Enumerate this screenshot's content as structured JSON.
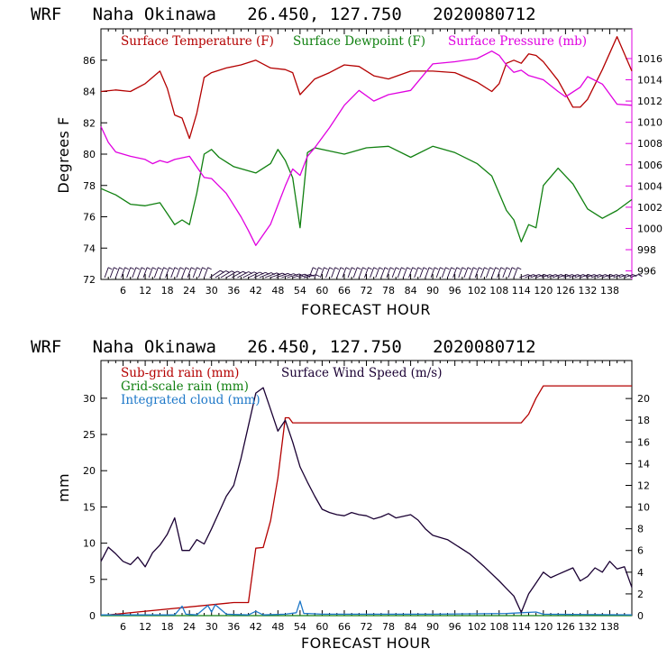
{
  "chart_data": [
    {
      "type": "line",
      "title": "WRF   Naha Okinawa   26.450, 127.750   2020080712",
      "xlabel": "FORECAST HOUR",
      "ylabel": "Degrees F",
      "xlim": [
        0,
        144
      ],
      "x_ticks": [
        6,
        12,
        18,
        24,
        30,
        36,
        42,
        48,
        54,
        60,
        66,
        72,
        78,
        84,
        90,
        96,
        102,
        108,
        114,
        120,
        126,
        132,
        138
      ],
      "ylim": [
        72,
        88
      ],
      "y_ticks": [
        72,
        74,
        76,
        78,
        80,
        82,
        84,
        86
      ],
      "y2lim": [
        995.2,
        1018.8
      ],
      "y2_ticks": [
        996,
        998,
        1000,
        1002,
        1004,
        1006,
        1008,
        1010,
        1012,
        1014,
        1016
      ],
      "legend_placement": "top",
      "colors": {
        "temp": "#b40000",
        "dew": "#108010",
        "pres": "#e000e0",
        "wind": "#1a0033"
      },
      "series": [
        {
          "name": "Surface Temperature (F)",
          "axis": "left",
          "color": "#b40000",
          "x": [
            0,
            4,
            8,
            12,
            16,
            18,
            20,
            22,
            24,
            26,
            28,
            30,
            34,
            38,
            42,
            46,
            50,
            52,
            54,
            58,
            62,
            66,
            70,
            74,
            78,
            84,
            90,
            96,
            102,
            106,
            108,
            110,
            112,
            114,
            116,
            118,
            120,
            124,
            128,
            130,
            132,
            136,
            140,
            144
          ],
          "y": [
            84.0,
            84.1,
            84.0,
            84.5,
            85.3,
            84.2,
            82.5,
            82.3,
            81.0,
            82.6,
            84.9,
            85.2,
            85.5,
            85.7,
            86.0,
            85.5,
            85.4,
            85.2,
            83.8,
            84.8,
            85.2,
            85.7,
            85.6,
            85.0,
            84.8,
            85.3,
            85.3,
            85.2,
            84.6,
            84.0,
            84.5,
            85.8,
            86.0,
            85.8,
            86.4,
            86.3,
            85.9,
            84.7,
            83.0,
            83.0,
            83.5,
            85.4,
            87.5,
            85.3
          ]
        },
        {
          "name": "Surface Dewpoint (F)",
          "axis": "left",
          "color": "#108010",
          "x": [
            0,
            4,
            8,
            12,
            16,
            18,
            20,
            22,
            24,
            26,
            28,
            30,
            32,
            36,
            42,
            46,
            48,
            50,
            52,
            54,
            56,
            58,
            60,
            66,
            72,
            78,
            84,
            90,
            96,
            102,
            106,
            110,
            112,
            114,
            116,
            118,
            120,
            124,
            128,
            132,
            136,
            140,
            144
          ],
          "y": [
            77.8,
            77.4,
            76.8,
            76.7,
            76.9,
            76.2,
            75.5,
            75.8,
            75.5,
            77.5,
            80.0,
            80.3,
            79.8,
            79.2,
            78.8,
            79.4,
            80.3,
            79.6,
            78.5,
            75.3,
            80.1,
            80.4,
            80.3,
            80.0,
            80.4,
            80.5,
            79.8,
            80.5,
            80.1,
            79.4,
            78.6,
            76.4,
            75.8,
            74.4,
            75.5,
            75.3,
            78.0,
            79.1,
            78.1,
            76.5,
            75.9,
            76.4,
            77.1
          ]
        },
        {
          "name": "Surface Pressure (mb)",
          "axis": "right",
          "color": "#e000e0",
          "x": [
            0,
            2,
            4,
            8,
            12,
            14,
            16,
            18,
            20,
            24,
            26,
            28,
            30,
            34,
            38,
            40,
            42,
            44,
            46,
            48,
            50,
            52,
            54,
            56,
            58,
            62,
            66,
            70,
            74,
            78,
            84,
            90,
            96,
            102,
            106,
            108,
            110,
            112,
            114,
            116,
            120,
            124,
            126,
            130,
            132,
            136,
            140,
            144
          ],
          "y": [
            1009.6,
            1008.1,
            1007.2,
            1006.8,
            1006.5,
            1006.1,
            1006.4,
            1006.2,
            1006.5,
            1006.8,
            1005.8,
            1004.8,
            1004.7,
            1003.3,
            1001.1,
            999.8,
            998.4,
            999.4,
            1000.4,
            1002.2,
            1004.0,
            1005.6,
            1005.0,
            1006.8,
            1007.6,
            1009.5,
            1011.6,
            1013.0,
            1012.0,
            1012.6,
            1013.0,
            1015.5,
            1015.7,
            1016.0,
            1016.7,
            1016.3,
            1015.4,
            1014.7,
            1014.9,
            1014.4,
            1014.0,
            1012.9,
            1012.4,
            1013.3,
            1014.3,
            1013.6,
            1011.7,
            1011.6
          ]
        }
      ],
      "wind_barbs_row": "bottom"
    },
    {
      "type": "line",
      "title": "WRF   Naha Okinawa   26.450, 127.750   2020080712",
      "xlabel": "FORECAST HOUR",
      "ylabel": "mm",
      "xlim": [
        0,
        144
      ],
      "x_ticks": [
        6,
        12,
        18,
        24,
        30,
        36,
        42,
        48,
        54,
        60,
        66,
        72,
        78,
        84,
        90,
        96,
        102,
        108,
        114,
        120,
        126,
        132,
        138
      ],
      "ylim": [
        0,
        35.2
      ],
      "y_ticks": [
        0,
        5,
        10,
        15,
        20,
        25,
        30
      ],
      "y2lim": [
        0,
        23.5
      ],
      "y2_ticks": [
        0,
        2,
        4,
        6,
        8,
        10,
        12,
        14,
        16,
        18,
        20
      ],
      "legend_placement": "top-left",
      "series": [
        {
          "name": "Sub-grid rain (mm)",
          "axis": "left",
          "color": "#b40000",
          "x": [
            0,
            36,
            40,
            42,
            44,
            46,
            48,
            50,
            51,
            52,
            114,
            116,
            118,
            120,
            144
          ],
          "y": [
            0,
            1.8,
            1.8,
            9.3,
            9.4,
            13.1,
            19.0,
            27.3,
            27.3,
            26.6,
            26.6,
            27.8,
            30.0,
            31.7,
            31.7
          ]
        },
        {
          "name": "Grid-scale rain (mm)",
          "axis": "left",
          "color": "#108010",
          "x": [
            0,
            144
          ],
          "y": [
            0,
            0
          ]
        },
        {
          "name": "Integrated cloud (mm)",
          "axis": "left",
          "color": "#1e78c8",
          "x": [
            0,
            20,
            22,
            23,
            26,
            29,
            30,
            31,
            34,
            40,
            42,
            44,
            50,
            53,
            54,
            55,
            56,
            60,
            90,
            110,
            114,
            118,
            120,
            144
          ],
          "y": [
            0.1,
            0.1,
            1.3,
            0.2,
            0.1,
            1.4,
            0.5,
            1.5,
            0.2,
            0.1,
            0.6,
            0.1,
            0.2,
            0.4,
            2.0,
            0.3,
            0.3,
            0.2,
            0.2,
            0.3,
            0.4,
            0.5,
            0.2,
            0.1
          ]
        },
        {
          "name": "Surface Wind Speed (m/s)",
          "axis": "right",
          "color": "#1a0033",
          "x": [
            0,
            2,
            4,
            6,
            8,
            10,
            12,
            14,
            16,
            18,
            20,
            22,
            24,
            26,
            28,
            30,
            32,
            34,
            36,
            38,
            40,
            42,
            44,
            46,
            48,
            50,
            52,
            54,
            56,
            58,
            60,
            62,
            64,
            66,
            68,
            70,
            72,
            74,
            76,
            78,
            80,
            84,
            86,
            88,
            90,
            94,
            100,
            104,
            108,
            110,
            112,
            114,
            116,
            118,
            120,
            122,
            124,
            128,
            130,
            132,
            134,
            136,
            138,
            140,
            142,
            144
          ],
          "y": [
            5.0,
            6.3,
            5.7,
            5.0,
            4.7,
            5.4,
            4.5,
            5.8,
            6.5,
            7.5,
            9.0,
            6.0,
            6.0,
            7.0,
            6.6,
            8.0,
            9.5,
            11.0,
            12.0,
            14.5,
            17.5,
            20.5,
            21.0,
            19.0,
            17.0,
            18.0,
            16.0,
            13.7,
            12.3,
            11.0,
            9.8,
            9.5,
            9.3,
            9.2,
            9.5,
            9.3,
            9.2,
            8.9,
            9.1,
            9.4,
            9.0,
            9.3,
            8.8,
            8.0,
            7.4,
            7.0,
            5.7,
            4.5,
            3.2,
            2.5,
            1.8,
            0.3,
            2.0,
            3.0,
            4.0,
            3.5,
            3.8,
            4.4,
            3.2,
            3.6,
            4.4,
            4.0,
            5.0,
            4.3,
            4.5,
            2.6
          ]
        }
      ]
    }
  ]
}
